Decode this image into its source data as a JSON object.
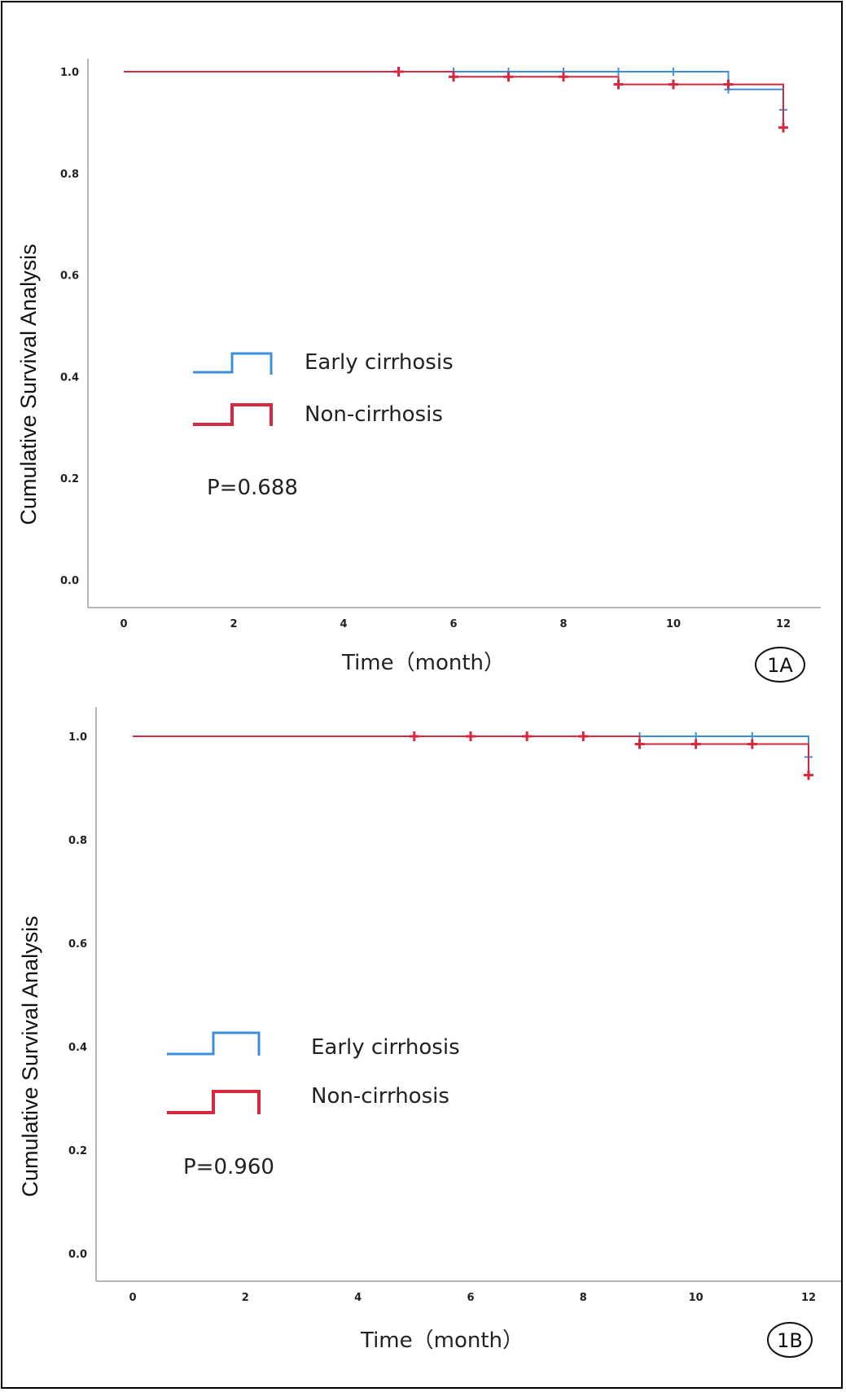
{
  "chart_data": [
    {
      "type": "line",
      "panel": "1A",
      "xlabel": "Time（month）",
      "ylabel": "Cumulative Survival Analysis",
      "xlim": [
        0,
        12
      ],
      "ylim": [
        0,
        1.0
      ],
      "xticks": [
        "0",
        "2",
        "4",
        "6",
        "8",
        "10",
        "12"
      ],
      "yticks": [
        "0.0",
        "0.2",
        "0.4",
        "0.6",
        "0.8",
        "1.0"
      ],
      "p_value": "P=0.688",
      "series": [
        {
          "name": "Early cirrhosis",
          "color": "#3d8fdc",
          "steps": [
            [
              0,
              1.0
            ],
            [
              11,
              1.0
            ],
            [
              11,
              0.965
            ],
            [
              12,
              0.965
            ],
            [
              12,
              0.925
            ]
          ],
          "censored": [
            [
              6,
              1.0
            ],
            [
              7,
              1.0
            ],
            [
              8,
              1.0
            ],
            [
              9,
              1.0
            ],
            [
              10,
              1.0
            ],
            [
              11,
              0.965
            ],
            [
              12,
              0.925
            ]
          ]
        },
        {
          "name": "Non-cirrhosis",
          "color": "#d6283f",
          "steps": [
            [
              0,
              1.0
            ],
            [
              6,
              1.0
            ],
            [
              6,
              0.99
            ],
            [
              9,
              0.99
            ],
            [
              9,
              0.975
            ],
            [
              12,
              0.975
            ],
            [
              12,
              0.89
            ]
          ],
          "censored": [
            [
              5,
              1.0
            ],
            [
              6,
              0.99
            ],
            [
              7,
              0.99
            ],
            [
              8,
              0.99
            ],
            [
              9,
              0.975
            ],
            [
              10,
              0.975
            ],
            [
              11,
              0.975
            ],
            [
              12,
              0.89
            ]
          ]
        }
      ]
    },
    {
      "type": "line",
      "panel": "1B",
      "xlabel": "Time（month）",
      "ylabel": "Cumulative Survival Analysis",
      "xlim": [
        0,
        12
      ],
      "ylim": [
        0,
        1.0
      ],
      "xticks": [
        "0",
        "2",
        "4",
        "6",
        "8",
        "10",
        "12"
      ],
      "yticks": [
        "0.0",
        "0.2",
        "0.4",
        "0.6",
        "0.8",
        "1.0"
      ],
      "p_value": "P=0.960",
      "series": [
        {
          "name": "Early cirrhosis",
          "color": "#3d8fdc",
          "steps": [
            [
              0,
              1.0
            ],
            [
              12,
              1.0
            ],
            [
              12,
              0.96
            ]
          ],
          "censored": [
            [
              9,
              1.0
            ],
            [
              10,
              1.0
            ],
            [
              11,
              1.0
            ],
            [
              12,
              0.96
            ]
          ]
        },
        {
          "name": "Non-cirrhosis",
          "color": "#d6283f",
          "steps": [
            [
              0,
              1.0
            ],
            [
              9,
              1.0
            ],
            [
              9,
              0.985
            ],
            [
              12,
              0.985
            ],
            [
              12,
              0.925
            ]
          ],
          "censored": [
            [
              5,
              1.0
            ],
            [
              6,
              1.0
            ],
            [
              7,
              1.0
            ],
            [
              8,
              1.0
            ],
            [
              9,
              0.985
            ],
            [
              10,
              0.985
            ],
            [
              11,
              0.985
            ],
            [
              12,
              0.925
            ]
          ]
        }
      ]
    }
  ]
}
